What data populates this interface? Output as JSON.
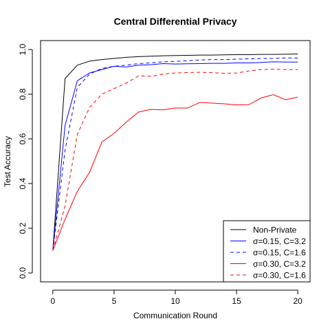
{
  "chart_data": {
    "type": "line",
    "title": "Central Differential Privacy",
    "xlabel": "Communication Round",
    "ylabel": "Test Accuracy",
    "xlim": [
      -1,
      21
    ],
    "ylim": [
      -0.04,
      1.04
    ],
    "xticks": [
      0,
      5,
      10,
      15,
      20
    ],
    "xtick_labels": [
      "0",
      "5",
      "10",
      "15",
      "20"
    ],
    "yticks": [
      0.0,
      0.2,
      0.4,
      0.6,
      0.8,
      1.0
    ],
    "ytick_labels": [
      "0.0",
      "0.2",
      "0.4",
      "0.6",
      "0.8",
      "1.0"
    ],
    "grid": false,
    "legend_position": "bottom-right",
    "x": [
      0,
      1,
      2,
      3,
      4,
      5,
      6,
      7,
      8,
      9,
      10,
      11,
      12,
      13,
      14,
      15,
      16,
      17,
      18,
      19,
      20
    ],
    "series": [
      {
        "name": "Non-Private",
        "color": "#000000",
        "dash": "solid",
        "values": [
          0.1,
          0.87,
          0.93,
          0.948,
          0.955,
          0.96,
          0.965,
          0.968,
          0.97,
          0.972,
          0.973,
          0.974,
          0.975,
          0.975,
          0.976,
          0.977,
          0.977,
          0.978,
          0.978,
          0.979,
          0.98
        ]
      },
      {
        "name": "σ=0.15, C=3.2",
        "color": "#0000ff",
        "dash": "solid",
        "values": [
          0.1,
          0.66,
          0.86,
          0.895,
          0.91,
          0.925,
          0.922,
          0.93,
          0.932,
          0.937,
          0.935,
          0.936,
          0.937,
          0.938,
          0.938,
          0.94,
          0.94,
          0.942,
          0.945,
          0.944,
          0.944
        ]
      },
      {
        "name": "σ=0.15, C=1.6",
        "color": "#0000ff",
        "dash": "dashed",
        "values": [
          0.1,
          0.55,
          0.83,
          0.89,
          0.915,
          0.925,
          0.93,
          0.937,
          0.94,
          0.945,
          0.947,
          0.95,
          0.953,
          0.955,
          0.955,
          0.957,
          0.958,
          0.96,
          0.96,
          0.962,
          0.962
        ]
      },
      {
        "name": "σ=0.30, C=3.2",
        "color": "#ff0000",
        "dash": "solid",
        "values": [
          0.1,
          0.24,
          0.365,
          0.45,
          0.585,
          0.625,
          0.675,
          0.72,
          0.732,
          0.73,
          0.738,
          0.738,
          0.763,
          0.76,
          0.757,
          0.752,
          0.753,
          0.783,
          0.798,
          0.775,
          0.787
        ]
      },
      {
        "name": "σ=0.30, C=1.6",
        "color": "#ff0000",
        "dash": "dashed",
        "values": [
          0.1,
          0.3,
          0.62,
          0.74,
          0.8,
          0.825,
          0.85,
          0.882,
          0.88,
          0.89,
          0.895,
          0.897,
          0.898,
          0.897,
          0.893,
          0.895,
          0.904,
          0.91,
          0.912,
          0.91,
          0.91
        ]
      }
    ]
  }
}
